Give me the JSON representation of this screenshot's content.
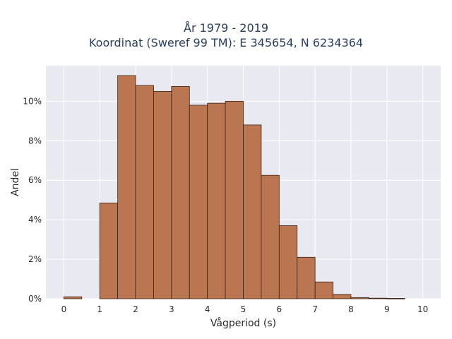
{
  "chart_data": {
    "type": "bar",
    "title_line1": "År 1979 - 2019",
    "title_line2": "Koordinat (Sweref 99 TM): E 345654, N 6234364",
    "xlabel": "Vågperiod (s)",
    "ylabel": "Andel",
    "xlim": [
      -0.5,
      10.5
    ],
    "ylim": [
      0,
      11.8
    ],
    "xticks": [
      0,
      1,
      2,
      3,
      4,
      5,
      6,
      7,
      8,
      9,
      10
    ],
    "yticks": [
      0,
      2,
      4,
      6,
      8,
      10
    ],
    "ytick_suffix": "%",
    "bin_width": 0.5,
    "bins": [
      {
        "x0": 0.0,
        "value": 0.1
      },
      {
        "x0": 0.5,
        "value": 0.0
      },
      {
        "x0": 1.0,
        "value": 4.85
      },
      {
        "x0": 1.5,
        "value": 11.3
      },
      {
        "x0": 2.0,
        "value": 10.8
      },
      {
        "x0": 2.5,
        "value": 10.5
      },
      {
        "x0": 3.0,
        "value": 10.75
      },
      {
        "x0": 3.5,
        "value": 9.8
      },
      {
        "x0": 4.0,
        "value": 9.9
      },
      {
        "x0": 4.5,
        "value": 10.0
      },
      {
        "x0": 5.0,
        "value": 8.8
      },
      {
        "x0": 5.5,
        "value": 6.25
      },
      {
        "x0": 6.0,
        "value": 3.7
      },
      {
        "x0": 6.5,
        "value": 2.1
      },
      {
        "x0": 7.0,
        "value": 0.85
      },
      {
        "x0": 7.5,
        "value": 0.22
      },
      {
        "x0": 8.0,
        "value": 0.06
      },
      {
        "x0": 8.5,
        "value": 0.03
      },
      {
        "x0": 9.0,
        "value": 0.02
      },
      {
        "x0": 9.5,
        "value": 0.0
      }
    ],
    "grid": true,
    "legend": "none",
    "colors": {
      "bar_fill": "#b97650",
      "bar_stroke": "#3d2416",
      "plot_bg": "#e9e9f1",
      "grid": "#ffffff"
    }
  }
}
